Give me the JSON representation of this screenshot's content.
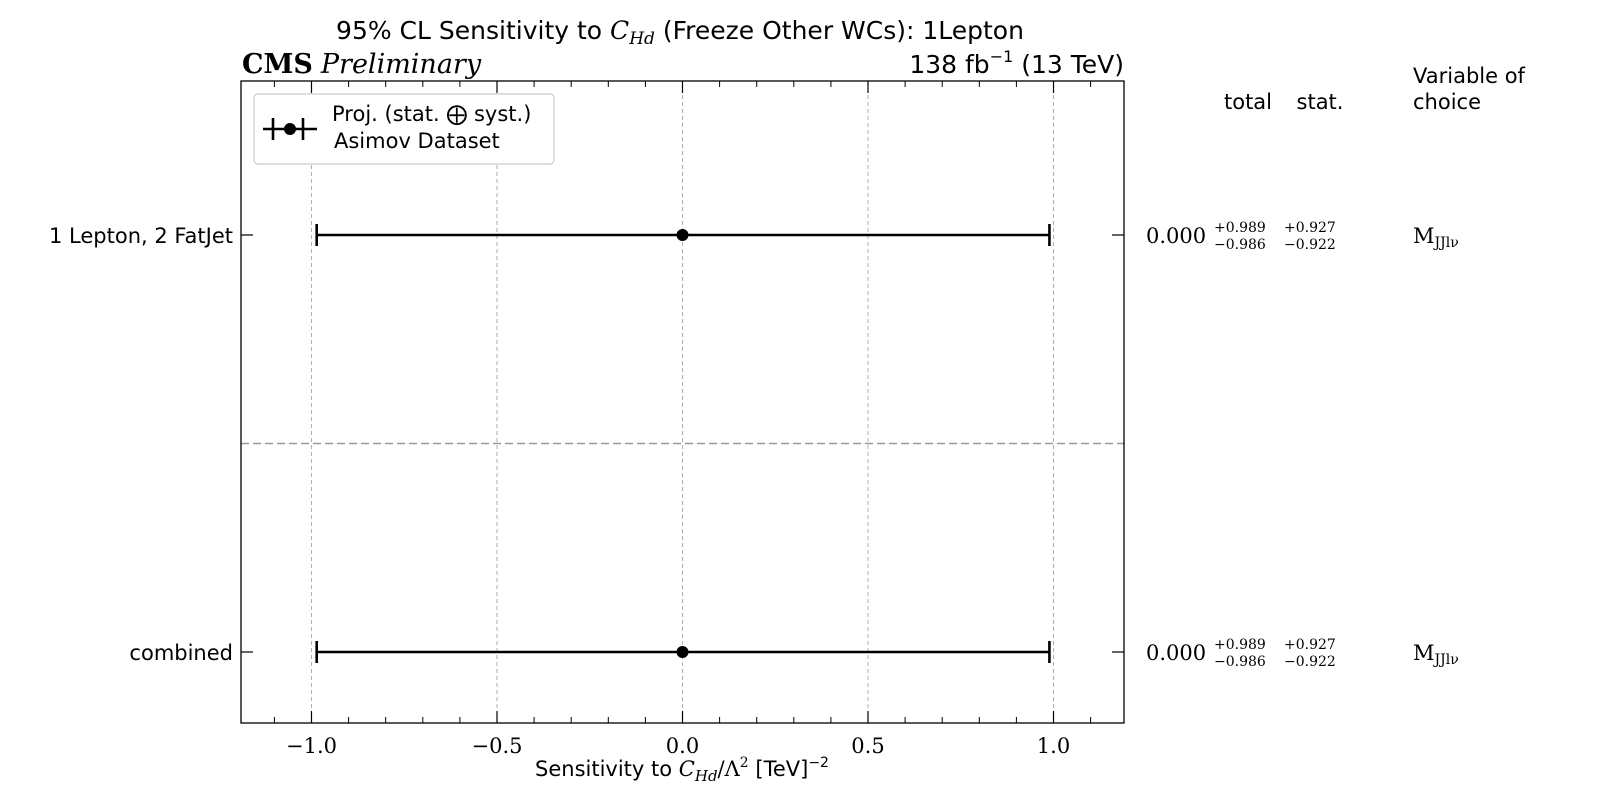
{
  "chart_data": {
    "type": "errorbar",
    "title": {
      "prefix": "95% CL Sensitivity to ",
      "symbol": "C",
      "symbol_sub": "Hd",
      "suffix": " (Freeze Other WCs): 1Lepton"
    },
    "experiment": "CMS",
    "status": "Preliminary",
    "lumi": {
      "value": "138 fb",
      "exponent": "−1",
      "energy": " (13 TeV)"
    },
    "xlabel": {
      "prefix": "Sensitivity to ",
      "symbol": "C",
      "symbol_sub": "Hd",
      "middle": "/Λ",
      "middle_sup": "2",
      "suffix": " [TeV]",
      "suffix_sup": "−2"
    },
    "xlim": [
      -1.19,
      1.19
    ],
    "xticks": [
      -1.0,
      -0.5,
      0.0,
      0.5,
      1.0
    ],
    "xtick_labels": [
      "−1.0",
      "−0.5",
      "0.0",
      "0.5",
      "1.0"
    ],
    "grid": true,
    "legend": {
      "position": "top-left",
      "line1": "Proj. (stat. ⨁ syst.)",
      "line2": "Asimov Dataset"
    },
    "columns": {
      "total": "total",
      "stat": "stat.",
      "variable_line1": "Variable of",
      "variable_line2": "choice"
    },
    "rows": [
      {
        "label": "1 Lepton, 2 FatJet",
        "central": 0.0,
        "lower": -0.986,
        "upper": 0.989,
        "central_text": "0.000",
        "total_up": "+0.989",
        "total_down": "−0.986",
        "stat_up": "+0.927",
        "stat_down": "−0.922",
        "variable": "M",
        "variable_sub": "JJlν"
      },
      {
        "label": "combined",
        "central": 0.0,
        "lower": -0.986,
        "upper": 0.989,
        "central_text": "0.000",
        "total_up": "+0.989",
        "total_down": "−0.986",
        "stat_up": "+0.927",
        "stat_down": "−0.922",
        "variable": "M",
        "variable_sub": "JJlν"
      }
    ]
  }
}
